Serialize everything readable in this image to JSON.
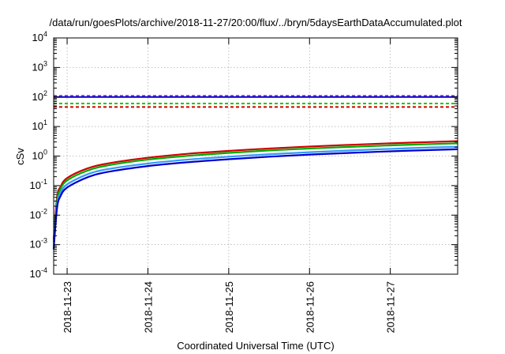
{
  "chart_data": {
    "type": "line",
    "title": "/data/run/goesPlots/archive/2018-11-27/20:00/flux/../bryn/5daysEarthDataAccumulated.plot",
    "xlabel": "Coordinated Universal Time (UTC)",
    "ylabel": "cSv",
    "yscale": "log",
    "ylim": [
      0.0001,
      10000
    ],
    "xlim": [
      "2018-11-22 20:00",
      "2018-11-27 20:00"
    ],
    "yticks": [
      {
        "value": 0.0001,
        "base": "10",
        "exp": "-4"
      },
      {
        "value": 0.001,
        "base": "10",
        "exp": "-3"
      },
      {
        "value": 0.01,
        "base": "10",
        "exp": "-2"
      },
      {
        "value": 0.1,
        "base": "10",
        "exp": "-1"
      },
      {
        "value": 1,
        "base": "10",
        "exp": "0"
      },
      {
        "value": 10,
        "base": "10",
        "exp": "1"
      },
      {
        "value": 100,
        "base": "10",
        "exp": "2"
      },
      {
        "value": 1000,
        "base": "10",
        "exp": "3"
      },
      {
        "value": 10000,
        "base": "10",
        "exp": "4"
      }
    ],
    "xticks": [
      {
        "value": "2018-11-23",
        "label": "2018-11-23"
      },
      {
        "value": "2018-11-24",
        "label": "2018-11-24"
      },
      {
        "value": "2018-11-25",
        "label": "2018-11-25"
      },
      {
        "value": "2018-11-26",
        "label": "2018-11-26"
      },
      {
        "value": "2018-11-27",
        "label": "2018-11-27"
      }
    ],
    "grid": true,
    "series": [
      {
        "color": "#cc0000",
        "style": "solid",
        "x": [
          "2018-11-22 20:00",
          "2018-11-22 21:00",
          "2018-11-22 22:00",
          "2018-11-23 00:00",
          "2018-11-23 06:00",
          "2018-11-23 12:00",
          "2018-11-24 00:00",
          "2018-11-24 12:00",
          "2018-11-25 00:00",
          "2018-11-25 12:00",
          "2018-11-26 00:00",
          "2018-11-26 12:00",
          "2018-11-27 00:00",
          "2018-11-27 12:00",
          "2018-11-27 20:00"
        ],
        "y": [
          0.0015,
          0.04,
          0.09,
          0.18,
          0.38,
          0.56,
          0.88,
          1.2,
          1.5,
          1.8,
          2.1,
          2.4,
          2.7,
          3.0,
          3.2
        ]
      },
      {
        "color": "#00aa00",
        "style": "solid",
        "x": [
          "2018-11-22 20:00",
          "2018-11-22 21:00",
          "2018-11-22 22:00",
          "2018-11-23 00:00",
          "2018-11-23 06:00",
          "2018-11-23 12:00",
          "2018-11-24 00:00",
          "2018-11-24 12:00",
          "2018-11-25 00:00",
          "2018-11-25 12:00",
          "2018-11-26 00:00",
          "2018-11-26 12:00",
          "2018-11-27 00:00",
          "2018-11-27 12:00",
          "2018-11-27 20:00"
        ],
        "y": [
          0.0012,
          0.03,
          0.075,
          0.15,
          0.32,
          0.48,
          0.76,
          1.02,
          1.28,
          1.55,
          1.8,
          2.05,
          2.3,
          2.55,
          2.7
        ]
      },
      {
        "color": "#3399ff",
        "style": "solid",
        "x": [
          "2018-11-22 20:00",
          "2018-11-22 21:00",
          "2018-11-22 22:00",
          "2018-11-23 00:00",
          "2018-11-23 06:00",
          "2018-11-23 12:00",
          "2018-11-24 00:00",
          "2018-11-24 12:00",
          "2018-11-25 00:00",
          "2018-11-25 12:00",
          "2018-11-26 00:00",
          "2018-11-26 12:00",
          "2018-11-27 00:00",
          "2018-11-27 12:00",
          "2018-11-27 20:00"
        ],
        "y": [
          0.0009,
          0.022,
          0.055,
          0.11,
          0.24,
          0.36,
          0.56,
          0.76,
          0.95,
          1.15,
          1.35,
          1.55,
          1.75,
          1.95,
          2.05
        ]
      },
      {
        "color": "#0000cc",
        "style": "solid",
        "x": [
          "2018-11-22 20:00",
          "2018-11-22 21:00",
          "2018-11-22 22:00",
          "2018-11-23 00:00",
          "2018-11-23 06:00",
          "2018-11-23 12:00",
          "2018-11-24 00:00",
          "2018-11-24 12:00",
          "2018-11-25 00:00",
          "2018-11-25 12:00",
          "2018-11-26 00:00",
          "2018-11-26 12:00",
          "2018-11-27 00:00",
          "2018-11-27 12:00",
          "2018-11-27 20:00"
        ],
        "y": [
          0.0007,
          0.017,
          0.043,
          0.086,
          0.19,
          0.29,
          0.46,
          0.62,
          0.78,
          0.95,
          1.12,
          1.28,
          1.45,
          1.6,
          1.7
        ]
      }
    ],
    "reference_lines": [
      {
        "y": 110,
        "color": "#9933cc",
        "style": "dashed"
      },
      {
        "y": 100,
        "color": "#0000cc",
        "style": "solid"
      },
      {
        "y": 60,
        "color": "#00cc00",
        "style": "dashed"
      },
      {
        "y": 46,
        "color": "#cc0000",
        "style": "dashed"
      }
    ]
  }
}
